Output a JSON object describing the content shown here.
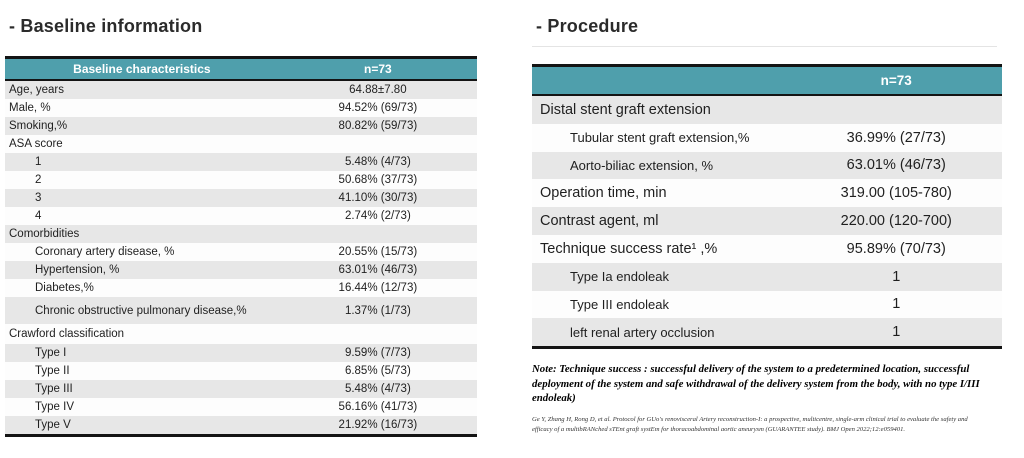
{
  "colors": {
    "header_bg": "#4f9fac",
    "stripe": "#e7e7e7",
    "page_bg": "#ffffff",
    "border": "#141414"
  },
  "left_section": {
    "title": "- Baseline information",
    "table": {
      "header": {
        "col1": "Baseline characteristics",
        "col2": "n=73"
      },
      "rows": [
        {
          "label": "Age, years",
          "value": "64.88±7.80",
          "indent": 0
        },
        {
          "label": "Male, %",
          "value": "94.52%  (69/73)",
          "indent": 0
        },
        {
          "label": "Smoking,%",
          "value": "80.82%  (59/73)",
          "indent": 0
        },
        {
          "label": "ASA score",
          "value": "",
          "indent": 0
        },
        {
          "label": "1",
          "value": "5.48%  (4/73)",
          "indent": 1
        },
        {
          "label": "2",
          "value": "50.68%  (37/73)",
          "indent": 1
        },
        {
          "label": "3",
          "value": "41.10%  (30/73)",
          "indent": 1
        },
        {
          "label": "4",
          "value": "2.74%  (2/73)",
          "indent": 1
        },
        {
          "label": "Comorbidities",
          "value": "",
          "indent": 0
        },
        {
          "label": "Coronary artery disease, %",
          "value": "20.55%  (15/73)",
          "indent": 1
        },
        {
          "label": "Hypertension, %",
          "value": "63.01%  (46/73)",
          "indent": 1
        },
        {
          "label": "Diabetes,%",
          "value": "16.44%  (12/73)",
          "indent": 1
        },
        {
          "label": "Chronic obstructive pulmonary disease,%",
          "value": "1.37%  (1/73)",
          "indent": 1
        },
        {
          "label": "Crawford classification",
          "value": "",
          "indent": 0
        },
        {
          "label": "Type I",
          "value": "9.59%  (7/73)",
          "indent": 1
        },
        {
          "label": "Type II",
          "value": "6.85%  (5/73)",
          "indent": 1
        },
        {
          "label": "Type III",
          "value": "5.48%  (4/73)",
          "indent": 1
        },
        {
          "label": "Type IV",
          "value": "56.16%  (41/73)",
          "indent": 1
        },
        {
          "label": "Type V",
          "value": "21.92%  (16/73)",
          "indent": 1
        }
      ]
    }
  },
  "right_section": {
    "title": "- Procedure",
    "table": {
      "header": {
        "col1": "",
        "col2": "n=73"
      },
      "rows": [
        {
          "label": "Distal stent graft extension",
          "value": "",
          "indent": 0
        },
        {
          "label": "Tubular stent graft extension,%",
          "value": "36.99%  (27/73)",
          "indent": 1
        },
        {
          "label": "Aorto-biliac extension, %",
          "value": "63.01%  (46/73)",
          "indent": 1
        },
        {
          "label": "Operation time, min",
          "value": "319.00  (105-780)",
          "indent": 0
        },
        {
          "label": "Contrast agent, ml",
          "value": "220.00  (120-700)",
          "indent": 0
        },
        {
          "label": "Technique success rate¹ ,%",
          "value": "95.89%  (70/73)",
          "indent": 0
        },
        {
          "label": "Type Ia endoleak",
          "value": "1",
          "indent": 1
        },
        {
          "label": "Type III endoleak",
          "value": "1",
          "indent": 1
        },
        {
          "label": "left renal artery occlusion",
          "value": "1",
          "indent": 1
        }
      ]
    },
    "note": "Note: Technique success : successful delivery of the system to a predetermined location, successful deployment of the system and safe withdrawal of the delivery system from the body, with no type I/III endoleak)",
    "citation": "Ge Y, Zhang H, Rong D, et al. Protocol for GUo's renovisceral Artery reconstruction-I: a prospective, multicentre, single-arm clinical trial to evaluate the safety and efficacy of a multibRANched sTEnt graft systEm for thoracoabdominal aortic aneurysm (GUARANTEE study). BMJ Open 2022;12:e059401."
  }
}
